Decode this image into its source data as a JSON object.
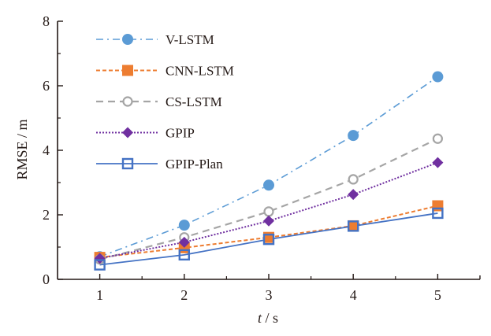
{
  "chart_data": {
    "type": "line",
    "title": "",
    "xlabel": "t / s",
    "xlabel_parts": {
      "var": "t",
      "unit": "/ s"
    },
    "ylabel": "RMSE / m",
    "x": [
      1,
      2,
      3,
      4,
      5
    ],
    "xlim": [
      0.5,
      5.5
    ],
    "ylim": [
      0,
      8
    ],
    "xticks": [
      1,
      2,
      3,
      4,
      5
    ],
    "xtick_labels": [
      "1",
      "2",
      "3",
      "4",
      "5"
    ],
    "yticks": [
      0,
      2,
      4,
      6,
      8
    ],
    "ytick_labels": [
      "0",
      "2",
      "4",
      "6",
      "8"
    ],
    "yminor_ticks": [
      1,
      3,
      5,
      7
    ],
    "xminor_ticks": [
      1.5,
      2.5,
      3.5,
      4.5
    ],
    "grid": false,
    "legend_position": "top-left",
    "series": [
      {
        "name": "V-LSTM",
        "color": "#5B9BD5",
        "line_style": "dash-dot",
        "marker": "filled-circle",
        "values": [
          0.7,
          1.68,
          2.92,
          4.46,
          6.28
        ]
      },
      {
        "name": "CNN-LSTM",
        "color": "#ED7D31",
        "line_style": "dashed",
        "marker": "filled-square",
        "values": [
          0.68,
          0.98,
          1.3,
          1.66,
          2.28
        ]
      },
      {
        "name": "CS-LSTM",
        "color": "#A5A5A5",
        "line_style": "long-dash",
        "marker": "open-circle",
        "values": [
          0.62,
          1.3,
          2.1,
          3.1,
          4.36
        ]
      },
      {
        "name": "GPIP",
        "color": "#7030A0",
        "line_style": "dotted",
        "marker": "filled-diamond",
        "values": [
          0.65,
          1.15,
          1.81,
          2.63,
          3.62
        ]
      },
      {
        "name": "GPIP-Plan",
        "color": "#4472C4",
        "line_style": "solid",
        "marker": "open-square",
        "values": [
          0.45,
          0.76,
          1.24,
          1.65,
          2.05
        ]
      }
    ]
  }
}
